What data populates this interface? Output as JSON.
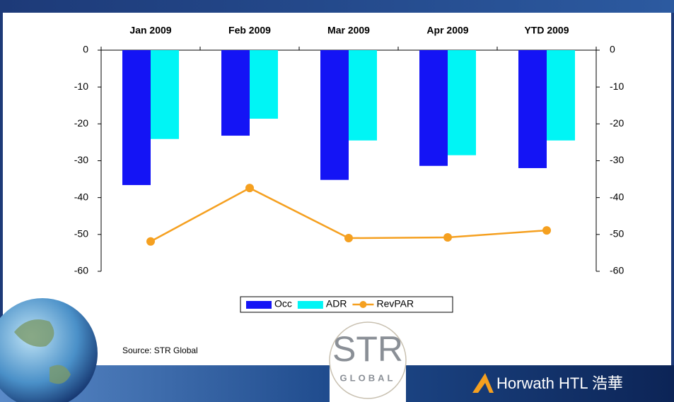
{
  "chart_data": {
    "type": "bar",
    "categories": [
      "Jan 2009",
      "Feb 2009",
      "Mar 2009",
      "Apr 2009",
      "YTD 2009"
    ],
    "series": [
      {
        "name": "Occ",
        "color": "#1414f5",
        "values": [
          -36.6,
          -23.2,
          -35.2,
          -31.4,
          -32.0
        ]
      },
      {
        "name": "ADR",
        "color": "#00f5f5",
        "values": [
          -24.1,
          -18.6,
          -24.5,
          -28.5,
          -24.5
        ]
      },
      {
        "name": "RevPAR",
        "color": "#f5a020",
        "type": "line",
        "axis": "y2",
        "values": [
          -51.9,
          -37.4,
          -51.0,
          -50.8,
          -48.9
        ]
      }
    ],
    "ylim": [
      -60,
      0
    ],
    "yticks": [
      0,
      -10,
      -20,
      -30,
      -40,
      -50,
      -60
    ],
    "y2lim": [
      -60,
      0
    ],
    "y2ticks": [
      0,
      -10,
      -20,
      -30,
      -40,
      -50,
      -60
    ],
    "legend": "bottom"
  },
  "footer": {
    "source": "Source: STR Global",
    "logo_str": "STR",
    "logo_global": "GLOBAL",
    "brand": "Horwath HTL 浩華"
  }
}
